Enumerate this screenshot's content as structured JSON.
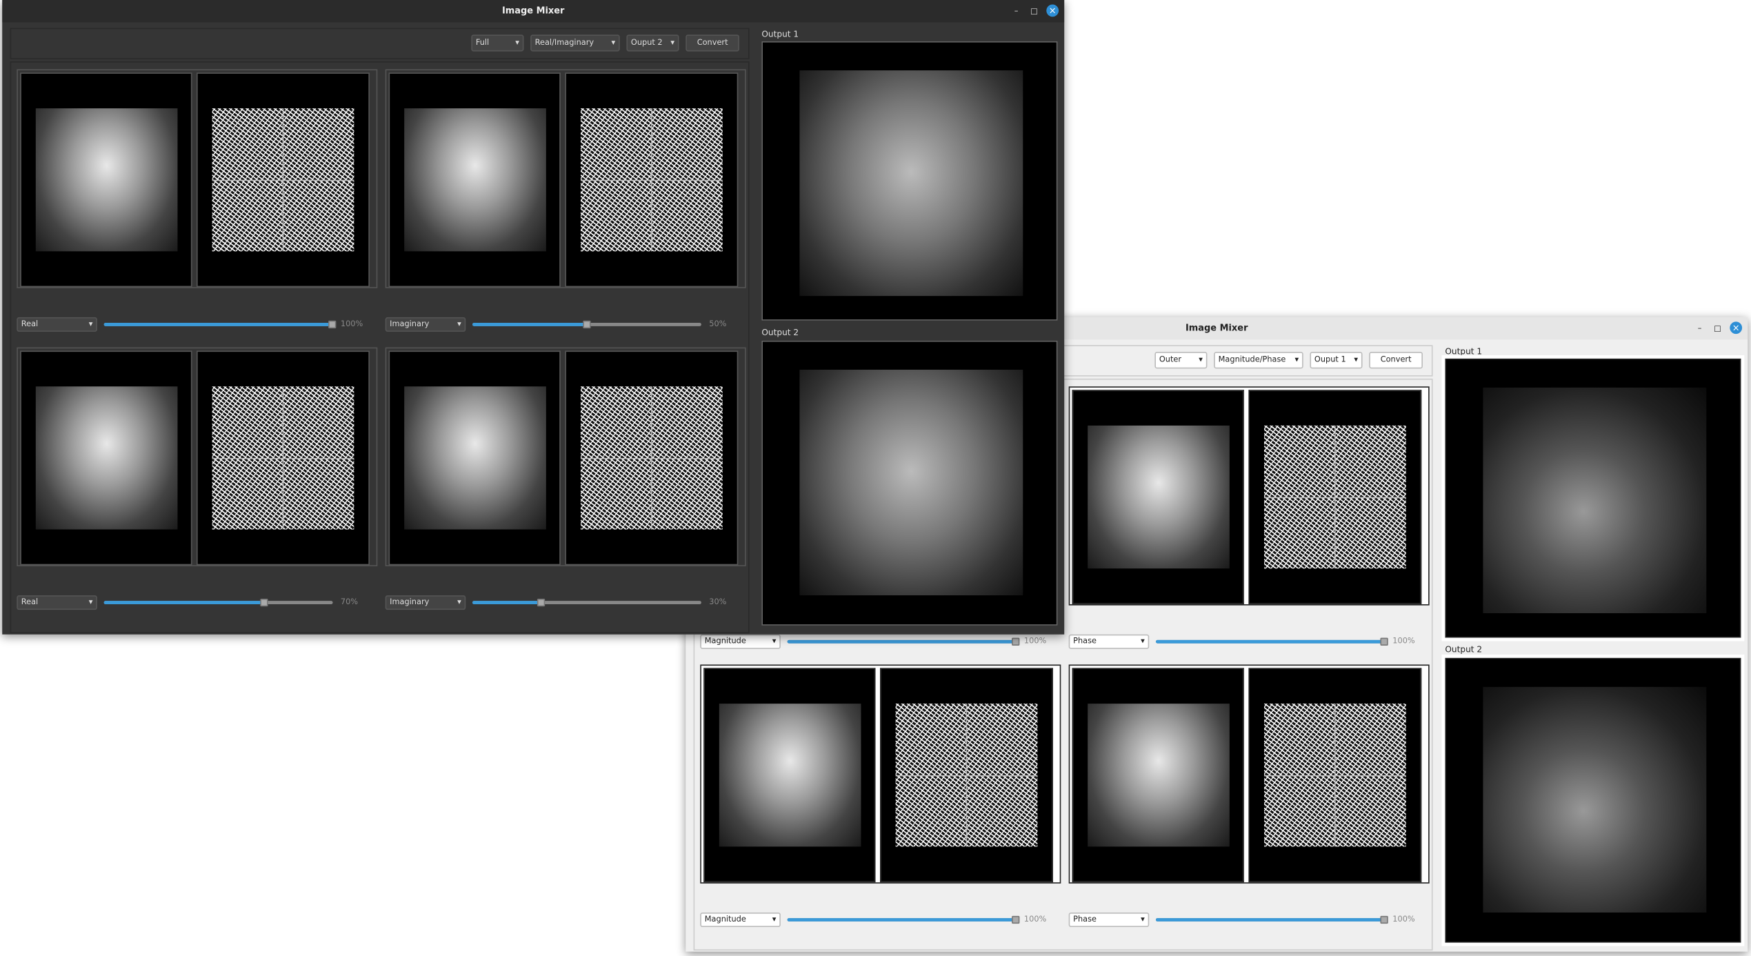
{
  "back_window": {
    "title": "Image Mixer",
    "toolbar": [
      "Outer",
      "Magnitude/Phase",
      "Ouput 1"
    ],
    "convert": "Convert",
    "outputs": [
      "Output 1",
      "Output 2"
    ],
    "components": [
      {
        "mode": "Magnitude",
        "value": 100,
        "label": "100%"
      },
      {
        "mode": "Phase",
        "value": 100,
        "label": "100%"
      },
      {
        "mode": "Magnitude",
        "value": 100,
        "label": "100%"
      },
      {
        "mode": "Phase",
        "value": 100,
        "label": "100%"
      }
    ]
  },
  "front_window": {
    "title": "Image Mixer",
    "toolbar": [
      "Full",
      "Real/Imaginary",
      "Ouput 2"
    ],
    "convert": "Convert",
    "outputs": [
      "Output 1",
      "Output 2"
    ],
    "components": [
      {
        "mode": "Real",
        "value": 100,
        "label": "100%"
      },
      {
        "mode": "Imaginary",
        "value": 50,
        "label": "50%"
      },
      {
        "mode": "Real",
        "value": 70,
        "label": "70%"
      },
      {
        "mode": "Imaginary",
        "value": 30,
        "label": "30%"
      }
    ]
  }
}
